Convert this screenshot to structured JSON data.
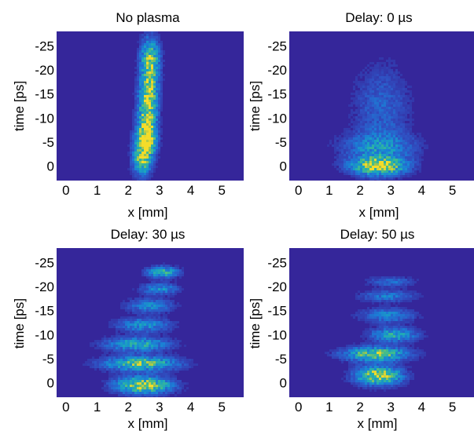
{
  "colors": {
    "background": "#35269a",
    "colormap": [
      "#35269a",
      "#2f52c4",
      "#1b7ed6",
      "#1aa3c0",
      "#3fbb8e",
      "#9fc550",
      "#f4dc2a"
    ]
  },
  "chart_data": [
    {
      "type": "heatmap",
      "title": "No plasma",
      "xlabel": "x [mm]",
      "ylabel": "time [ps]",
      "xlim": [
        -0.3,
        5.7
      ],
      "ylim": [
        -28,
        3
      ],
      "xticks": [
        "0",
        "1",
        "2",
        "3",
        "4",
        "5"
      ],
      "yticks": [
        "-25",
        "-20",
        "-15",
        "-10",
        "-5",
        "0"
      ],
      "features": [
        {
          "x": 2.7,
          "y": -22,
          "sx": 0.2,
          "sy": 3,
          "intensity": 0.9
        },
        {
          "x": 2.65,
          "y": -15,
          "sx": 0.2,
          "sy": 3,
          "intensity": 0.85
        },
        {
          "x": 2.6,
          "y": -9,
          "sx": 0.2,
          "sy": 3,
          "intensity": 0.85
        },
        {
          "x": 2.55,
          "y": -5,
          "sx": 0.22,
          "sy": 2,
          "intensity": 0.95
        },
        {
          "x": 2.45,
          "y": -1,
          "sx": 0.2,
          "sy": 2,
          "intensity": 0.8
        }
      ]
    },
    {
      "type": "heatmap",
      "title": "Delay: 0 µs",
      "xlabel": "x [mm]",
      "ylabel": "time [ps]",
      "xlim": [
        -0.3,
        5.7
      ],
      "ylim": [
        -28,
        3
      ],
      "xticks": [
        "0",
        "1",
        "2",
        "3",
        "4",
        "5"
      ],
      "yticks": [
        "-25",
        "-20",
        "-15",
        "-10",
        "-5",
        "0"
      ],
      "features": [
        {
          "x": 2.6,
          "y": 0,
          "sx": 0.6,
          "sy": 1.3,
          "intensity": 1.0
        },
        {
          "x": 2.6,
          "y": -4,
          "sx": 0.8,
          "sy": 2,
          "intensity": 0.4
        },
        {
          "x": 2.7,
          "y": -12,
          "sx": 0.6,
          "sy": 6,
          "intensity": 0.25
        }
      ]
    },
    {
      "type": "heatmap",
      "title": "Delay: 30 µs",
      "xlabel": "x [mm]",
      "ylabel": "time [ps]",
      "xlim": [
        -0.3,
        5.7
      ],
      "ylim": [
        -28,
        3
      ],
      "xticks": [
        "0",
        "1",
        "2",
        "3",
        "4",
        "5"
      ],
      "yticks": [
        "-25",
        "-20",
        "-15",
        "-10",
        "-5",
        "0"
      ],
      "features": [
        {
          "x": 2.5,
          "y": 0.5,
          "sx": 0.6,
          "sy": 1.2,
          "intensity": 1.0
        },
        {
          "x": 2.4,
          "y": -4,
          "sx": 0.8,
          "sy": 1.0,
          "intensity": 0.8
        },
        {
          "x": 2.3,
          "y": -8,
          "sx": 0.7,
          "sy": 1.0,
          "intensity": 0.6
        },
        {
          "x": 2.5,
          "y": -12,
          "sx": 0.6,
          "sy": 1.0,
          "intensity": 0.45
        },
        {
          "x": 2.7,
          "y": -16,
          "sx": 0.5,
          "sy": 1.0,
          "intensity": 0.4
        },
        {
          "x": 3.0,
          "y": -19.5,
          "sx": 0.4,
          "sy": 0.8,
          "intensity": 0.45
        },
        {
          "x": 3.1,
          "y": -23,
          "sx": 0.35,
          "sy": 0.8,
          "intensity": 0.65
        }
      ]
    },
    {
      "type": "heatmap",
      "title": "Delay: 50 µs",
      "xlabel": "x [mm]",
      "ylabel": "time [ps]",
      "xlim": [
        -0.3,
        5.7
      ],
      "ylim": [
        -28,
        3
      ],
      "xticks": [
        "0",
        "1",
        "2",
        "3",
        "4",
        "5"
      ],
      "yticks": [
        "-25",
        "-20",
        "-15",
        "-10",
        "-5",
        "0"
      ],
      "features": [
        {
          "x": 2.6,
          "y": -1.5,
          "sx": 0.5,
          "sy": 1.3,
          "intensity": 1.0
        },
        {
          "x": 2.5,
          "y": -6,
          "sx": 0.7,
          "sy": 1.0,
          "intensity": 0.85
        },
        {
          "x": 3.1,
          "y": -10,
          "sx": 0.5,
          "sy": 1.0,
          "intensity": 0.6
        },
        {
          "x": 2.9,
          "y": -14,
          "sx": 0.6,
          "sy": 1.0,
          "intensity": 0.4
        },
        {
          "x": 2.9,
          "y": -18,
          "sx": 0.6,
          "sy": 0.8,
          "intensity": 0.35
        },
        {
          "x": 3.0,
          "y": -21,
          "sx": 0.5,
          "sy": 0.7,
          "intensity": 0.3
        }
      ]
    }
  ]
}
